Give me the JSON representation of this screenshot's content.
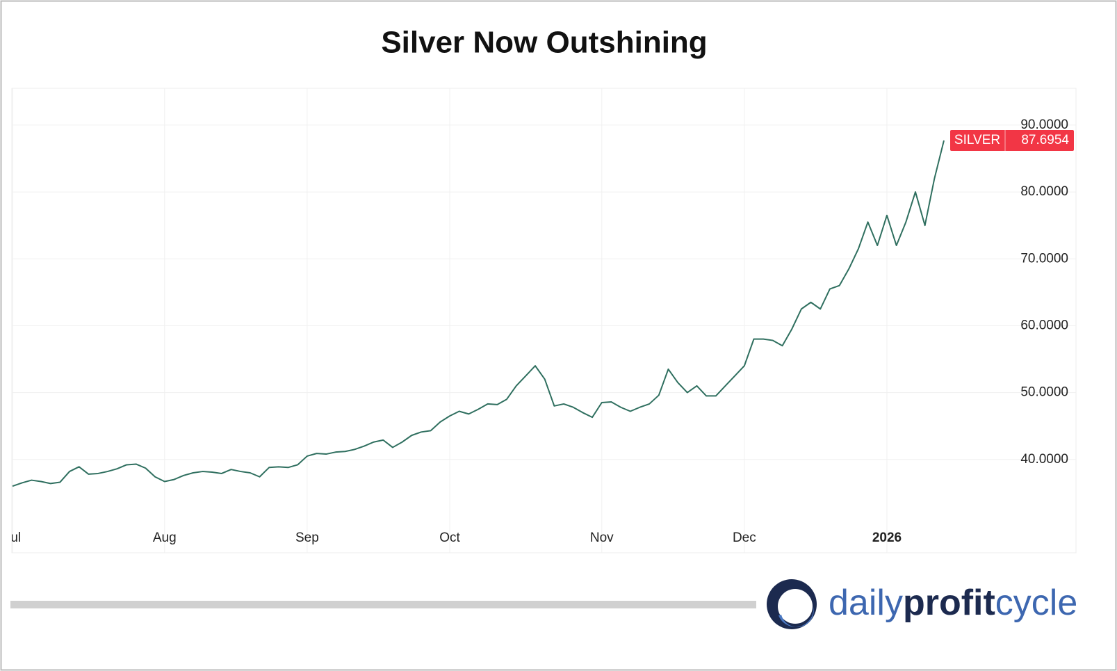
{
  "chart_data": {
    "type": "line",
    "title": "Silver Now Outshining",
    "categories": [
      "Jul",
      null,
      null,
      null,
      null,
      null,
      null,
      null,
      null,
      null,
      null,
      null,
      null,
      null,
      null,
      null,
      "Aug",
      null,
      null,
      null,
      null,
      null,
      null,
      null,
      null,
      null,
      null,
      null,
      null,
      null,
      null,
      "Sep",
      null,
      null,
      null,
      null,
      null,
      null,
      null,
      null,
      null,
      null,
      null,
      null,
      null,
      null,
      "Oct",
      null,
      null,
      null,
      null,
      null,
      null,
      null,
      null,
      null,
      null,
      null,
      null,
      null,
      null,
      null,
      "Nov",
      null,
      null,
      null,
      null,
      null,
      null,
      null,
      null,
      null,
      null,
      null,
      null,
      null,
      null,
      "Dec",
      null,
      null,
      null,
      null,
      null,
      null,
      null,
      null,
      null,
      null,
      null,
      null,
      null,
      null,
      "2026",
      null,
      null,
      null,
      null,
      null,
      null
    ],
    "series": [
      {
        "name": "SILVER",
        "color": "#2f6f5f",
        "values": [
          36.0,
          36.5,
          36.9,
          36.7,
          36.4,
          36.6,
          38.2,
          38.9,
          37.8,
          37.9,
          38.2,
          38.6,
          39.2,
          39.3,
          38.7,
          37.4,
          36.7,
          37.0,
          37.6,
          38.0,
          38.2,
          38.1,
          37.9,
          38.5,
          38.2,
          38.0,
          37.4,
          38.8,
          38.9,
          38.8,
          39.2,
          40.5,
          40.9,
          40.8,
          41.1,
          41.2,
          41.5,
          42.0,
          42.6,
          42.9,
          41.8,
          42.6,
          43.6,
          44.1,
          44.3,
          45.6,
          46.5,
          47.2,
          46.8,
          47.5,
          48.3,
          48.2,
          49.0,
          51.0,
          52.5,
          54.0,
          52.0,
          48.0,
          48.3,
          47.8,
          47.0,
          46.3,
          48.5,
          48.6,
          47.8,
          47.2,
          47.8,
          48.3,
          49.6,
          53.5,
          51.5,
          50.0,
          51.0,
          49.5,
          49.5,
          51.0,
          52.5,
          54.0,
          58.0,
          58.0,
          57.8,
          57.0,
          59.5,
          62.5,
          63.5,
          62.5,
          65.5,
          66.0,
          68.5,
          71.5,
          75.5,
          72.0,
          76.5,
          72.0,
          75.5,
          80.0,
          75.0,
          82.0,
          87.6954
        ]
      }
    ],
    "last_value_label": {
      "name": "SILVER",
      "value": 87.6954,
      "color": "#f23645"
    },
    "ylim": [
      30.2,
      95.5
    ],
    "yticks": [
      {
        "value": 40,
        "label": "40.0000"
      },
      {
        "value": 50,
        "label": "50.0000"
      },
      {
        "value": 60,
        "label": "60.0000"
      },
      {
        "value": 70,
        "label": "70.0000"
      },
      {
        "value": 80,
        "label": "80.0000"
      },
      {
        "value": 90,
        "label": "90.0000"
      }
    ],
    "grid": true
  },
  "logo": {
    "parts": [
      "daily",
      "profit",
      "cycle"
    ]
  }
}
